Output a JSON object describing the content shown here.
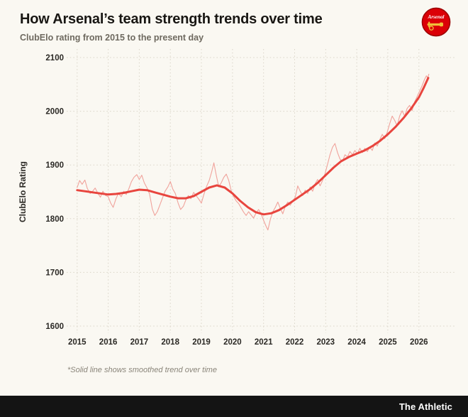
{
  "header": {
    "title": "How Arsenal’s team strength trends over time",
    "subtitle": "ClubElo rating from 2015 to the present day",
    "badge": "Arsenal"
  },
  "footer": {
    "brand": "The Athletic"
  },
  "chart_data": {
    "type": "line",
    "title": "How Arsenal’s team strength trends over time",
    "subtitle": "ClubElo rating from 2015 to the present day",
    "xlabel": "",
    "ylabel": "ClubElo Rating",
    "footnote": "*Solid line shows smoothed trend over time",
    "grid": "dotted",
    "xlim": [
      2014.8,
      2026.85
    ],
    "ylim": [
      1600,
      2100
    ],
    "x_ticks": [
      2015,
      2016,
      2017,
      2018,
      2019,
      2020,
      2021,
      2022,
      2023,
      2024,
      2025,
      2026
    ],
    "y_ticks": [
      1600,
      1700,
      1800,
      1900,
      2000,
      2100
    ],
    "colors": {
      "raw": "#f0a29b",
      "trend": "#e8453e",
      "background": "#faf8f2",
      "grid": "#d9d4c7"
    },
    "series": [
      {
        "id": "raw",
        "name": "ClubElo rating (raw)",
        "color": "#f0a29b",
        "width": 1.1,
        "points": [
          [
            2015.0,
            1858
          ],
          [
            2015.08,
            1871
          ],
          [
            2015.16,
            1864
          ],
          [
            2015.25,
            1872
          ],
          [
            2015.33,
            1856
          ],
          [
            2015.42,
            1847
          ],
          [
            2015.5,
            1851
          ],
          [
            2015.58,
            1857
          ],
          [
            2015.66,
            1848
          ],
          [
            2015.75,
            1840
          ],
          [
            2015.83,
            1851
          ],
          [
            2015.92,
            1843
          ],
          [
            2016.0,
            1841
          ],
          [
            2016.08,
            1829
          ],
          [
            2016.16,
            1821
          ],
          [
            2016.25,
            1837
          ],
          [
            2016.33,
            1847
          ],
          [
            2016.42,
            1841
          ],
          [
            2016.5,
            1851
          ],
          [
            2016.58,
            1845
          ],
          [
            2016.66,
            1855
          ],
          [
            2016.75,
            1869
          ],
          [
            2016.83,
            1877
          ],
          [
            2016.92,
            1882
          ],
          [
            2017.0,
            1873
          ],
          [
            2017.08,
            1881
          ],
          [
            2017.16,
            1867
          ],
          [
            2017.25,
            1857
          ],
          [
            2017.33,
            1846
          ],
          [
            2017.42,
            1818
          ],
          [
            2017.5,
            1806
          ],
          [
            2017.58,
            1813
          ],
          [
            2017.66,
            1825
          ],
          [
            2017.75,
            1839
          ],
          [
            2017.83,
            1851
          ],
          [
            2017.92,
            1859
          ],
          [
            2018.0,
            1869
          ],
          [
            2018.08,
            1855
          ],
          [
            2018.16,
            1847
          ],
          [
            2018.25,
            1829
          ],
          [
            2018.33,
            1817
          ],
          [
            2018.42,
            1823
          ],
          [
            2018.5,
            1835
          ],
          [
            2018.58,
            1843
          ],
          [
            2018.66,
            1837
          ],
          [
            2018.75,
            1849
          ],
          [
            2018.83,
            1843
          ],
          [
            2018.92,
            1836
          ],
          [
            2019.0,
            1829
          ],
          [
            2019.08,
            1845
          ],
          [
            2019.16,
            1859
          ],
          [
            2019.25,
            1871
          ],
          [
            2019.33,
            1887
          ],
          [
            2019.4,
            1904
          ],
          [
            2019.48,
            1880
          ],
          [
            2019.56,
            1859
          ],
          [
            2019.64,
            1867
          ],
          [
            2019.72,
            1877
          ],
          [
            2019.8,
            1883
          ],
          [
            2019.88,
            1871
          ],
          [
            2019.96,
            1852
          ],
          [
            2020.04,
            1841
          ],
          [
            2020.12,
            1833
          ],
          [
            2020.2,
            1828
          ],
          [
            2020.28,
            1820
          ],
          [
            2020.36,
            1812
          ],
          [
            2020.44,
            1806
          ],
          [
            2020.52,
            1813
          ],
          [
            2020.6,
            1807
          ],
          [
            2020.68,
            1801
          ],
          [
            2020.76,
            1811
          ],
          [
            2020.84,
            1817
          ],
          [
            2020.92,
            1809
          ],
          [
            2021.0,
            1797
          ],
          [
            2021.08,
            1786
          ],
          [
            2021.14,
            1779
          ],
          [
            2021.22,
            1799
          ],
          [
            2021.3,
            1813
          ],
          [
            2021.38,
            1821
          ],
          [
            2021.46,
            1831
          ],
          [
            2021.54,
            1819
          ],
          [
            2021.62,
            1809
          ],
          [
            2021.7,
            1823
          ],
          [
            2021.78,
            1831
          ],
          [
            2021.86,
            1825
          ],
          [
            2021.94,
            1833
          ],
          [
            2022.02,
            1840
          ],
          [
            2022.1,
            1861
          ],
          [
            2022.18,
            1851
          ],
          [
            2022.26,
            1843
          ],
          [
            2022.34,
            1853
          ],
          [
            2022.42,
            1847
          ],
          [
            2022.5,
            1859
          ],
          [
            2022.58,
            1851
          ],
          [
            2022.66,
            1865
          ],
          [
            2022.74,
            1873
          ],
          [
            2022.82,
            1861
          ],
          [
            2022.9,
            1871
          ],
          [
            2022.98,
            1884
          ],
          [
            2023.06,
            1901
          ],
          [
            2023.14,
            1919
          ],
          [
            2023.22,
            1933
          ],
          [
            2023.3,
            1940
          ],
          [
            2023.38,
            1923
          ],
          [
            2023.46,
            1911
          ],
          [
            2023.54,
            1907
          ],
          [
            2023.62,
            1919
          ],
          [
            2023.7,
            1915
          ],
          [
            2023.78,
            1925
          ],
          [
            2023.86,
            1919
          ],
          [
            2023.94,
            1927
          ],
          [
            2024.02,
            1921
          ],
          [
            2024.1,
            1931
          ],
          [
            2024.18,
            1923
          ],
          [
            2024.26,
            1931
          ],
          [
            2024.34,
            1925
          ],
          [
            2024.42,
            1933
          ],
          [
            2024.5,
            1927
          ],
          [
            2024.58,
            1941
          ],
          [
            2024.66,
            1935
          ],
          [
            2024.74,
            1947
          ],
          [
            2024.82,
            1957
          ],
          [
            2024.9,
            1949
          ],
          [
            2024.98,
            1961
          ],
          [
            2025.06,
            1977
          ],
          [
            2025.14,
            1991
          ],
          [
            2025.22,
            1983
          ],
          [
            2025.3,
            1973
          ],
          [
            2025.38,
            1991
          ],
          [
            2025.46,
            2001
          ],
          [
            2025.54,
            1991
          ],
          [
            2025.62,
            2005
          ],
          [
            2025.7,
            2011
          ],
          [
            2025.78,
            2001
          ],
          [
            2025.86,
            2017
          ],
          [
            2025.94,
            2027
          ],
          [
            2026.02,
            2037
          ],
          [
            2026.1,
            2047
          ],
          [
            2026.18,
            2059
          ],
          [
            2026.24,
            2066
          ],
          [
            2026.28,
            2062
          ],
          [
            2026.32,
            2069
          ]
        ]
      },
      {
        "id": "trend",
        "name": "Smoothed trend",
        "color": "#e8453e",
        "width": 3,
        "points": [
          [
            2015.0,
            1853
          ],
          [
            2015.25,
            1851
          ],
          [
            2015.5,
            1849
          ],
          [
            2015.75,
            1847
          ],
          [
            2016.0,
            1845
          ],
          [
            2016.25,
            1846
          ],
          [
            2016.5,
            1848
          ],
          [
            2016.75,
            1851
          ],
          [
            2017.0,
            1854
          ],
          [
            2017.25,
            1853
          ],
          [
            2017.5,
            1849
          ],
          [
            2017.75,
            1845
          ],
          [
            2018.0,
            1841
          ],
          [
            2018.25,
            1838
          ],
          [
            2018.5,
            1838
          ],
          [
            2018.75,
            1842
          ],
          [
            2019.0,
            1850
          ],
          [
            2019.25,
            1858
          ],
          [
            2019.5,
            1862
          ],
          [
            2019.75,
            1858
          ],
          [
            2020.0,
            1847
          ],
          [
            2020.25,
            1833
          ],
          [
            2020.5,
            1821
          ],
          [
            2020.75,
            1812
          ],
          [
            2021.0,
            1808
          ],
          [
            2021.25,
            1810
          ],
          [
            2021.5,
            1816
          ],
          [
            2021.75,
            1825
          ],
          [
            2022.0,
            1835
          ],
          [
            2022.25,
            1845
          ],
          [
            2022.5,
            1855
          ],
          [
            2022.75,
            1867
          ],
          [
            2023.0,
            1881
          ],
          [
            2023.25,
            1895
          ],
          [
            2023.5,
            1907
          ],
          [
            2023.75,
            1915
          ],
          [
            2024.0,
            1921
          ],
          [
            2024.25,
            1927
          ],
          [
            2024.5,
            1935
          ],
          [
            2024.75,
            1945
          ],
          [
            2025.0,
            1957
          ],
          [
            2025.25,
            1971
          ],
          [
            2025.5,
            1987
          ],
          [
            2025.75,
            2005
          ],
          [
            2026.0,
            2026
          ],
          [
            2026.15,
            2043
          ],
          [
            2026.3,
            2062
          ]
        ]
      }
    ]
  }
}
